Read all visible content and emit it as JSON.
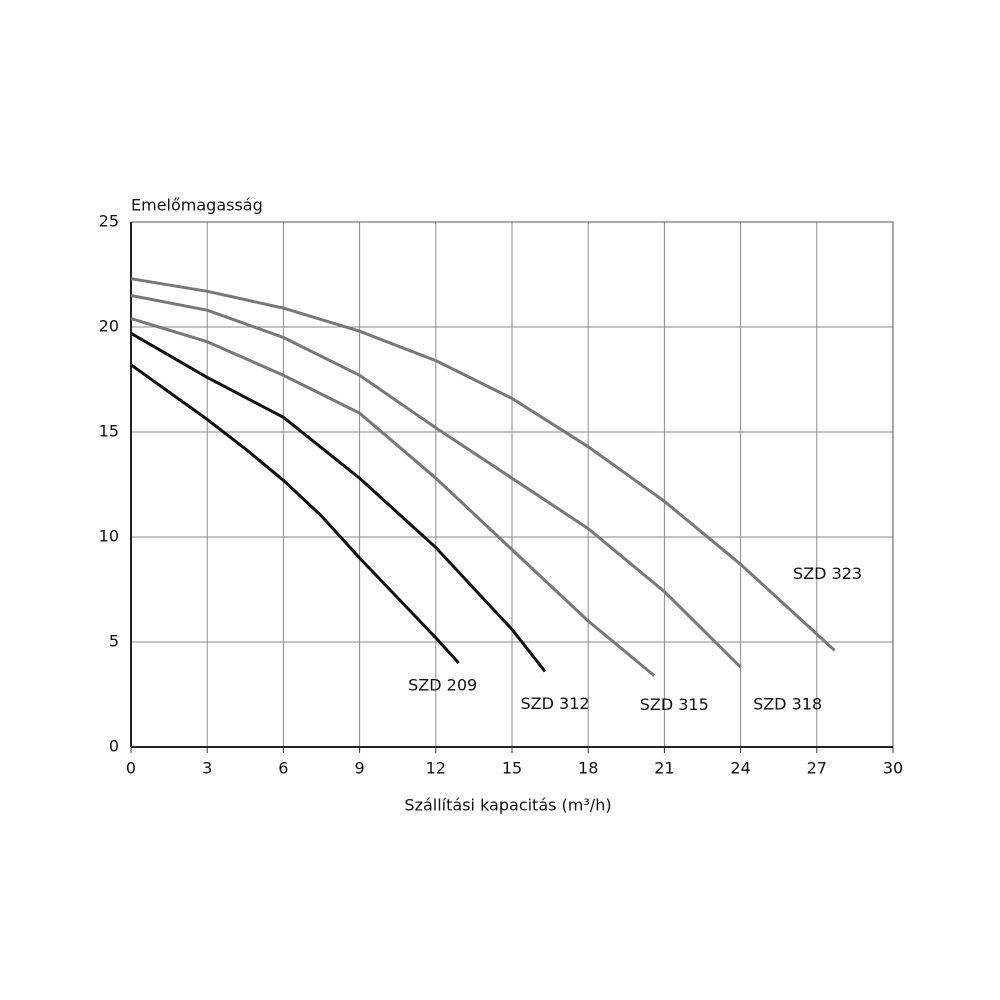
{
  "chart_data": {
    "type": "line",
    "ylabel": "Emelőmagasság",
    "xlabel": "Szállítási kapacitás (m³/h)",
    "xlim": [
      0,
      30
    ],
    "xticks": [
      0,
      3,
      6,
      9,
      12,
      15,
      18,
      21,
      24,
      27,
      30
    ],
    "ylim": [
      0,
      25
    ],
    "yticks": [
      0,
      5,
      10,
      15,
      20,
      25
    ],
    "grid": true,
    "series": [
      {
        "name": "SZD 209",
        "color": "#111111",
        "x": [
          0,
          1.5,
          3,
          4.5,
          6,
          7.5,
          9,
          10.5,
          12,
          12.9
        ],
        "values": [
          18.2,
          16.9,
          15.6,
          14.2,
          12.7,
          11.0,
          9.0,
          7.1,
          5.2,
          4.0
        ]
      },
      {
        "name": "SZD 312",
        "color": "#111111",
        "x": [
          0,
          3,
          6,
          9,
          12,
          15,
          16.3
        ],
        "values": [
          19.7,
          17.6,
          15.7,
          12.8,
          9.5,
          5.6,
          3.6
        ]
      },
      {
        "name": "SZD 315",
        "color": "#777777",
        "x": [
          0,
          3,
          6,
          9,
          12,
          15,
          18,
          20.6
        ],
        "values": [
          20.4,
          19.3,
          17.7,
          15.9,
          12.8,
          9.4,
          6.0,
          3.4
        ]
      },
      {
        "name": "SZD 318",
        "color": "#777777",
        "x": [
          0,
          3,
          6,
          9,
          12,
          15,
          18,
          21,
          24
        ],
        "values": [
          21.5,
          20.8,
          19.5,
          17.7,
          15.2,
          12.8,
          10.4,
          7.4,
          3.8
        ]
      },
      {
        "name": "SZD 323",
        "color": "#777777",
        "x": [
          0,
          3,
          6,
          9,
          12,
          15,
          18,
          21,
          24,
          27.7
        ],
        "values": [
          22.3,
          21.7,
          20.9,
          19.8,
          18.4,
          16.6,
          14.3,
          11.7,
          8.7,
          4.6
        ]
      }
    ]
  }
}
